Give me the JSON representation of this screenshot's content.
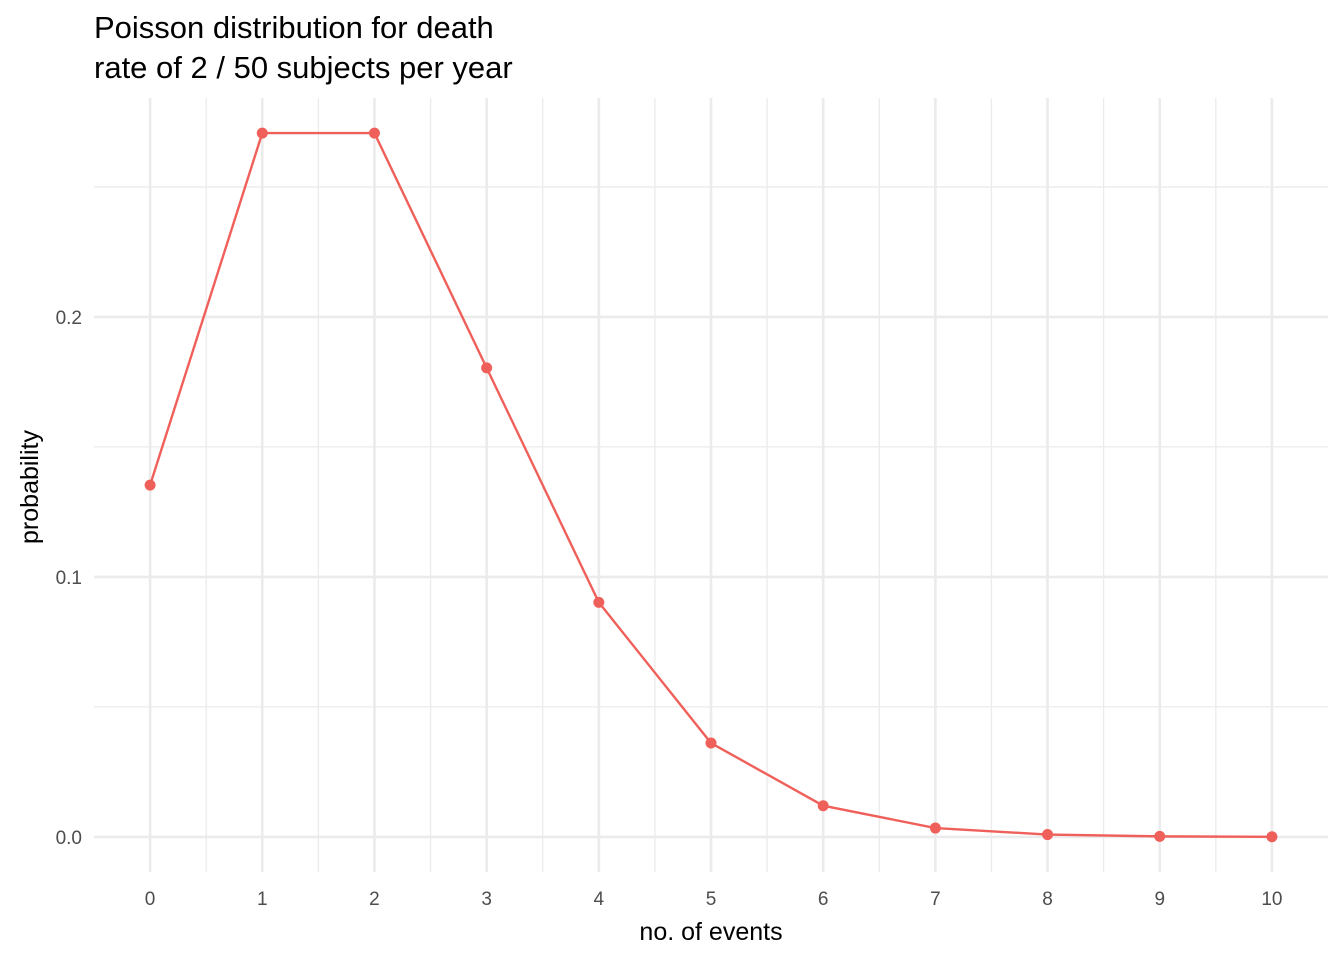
{
  "chart_data": {
    "type": "line",
    "title": [
      "Poisson distribution for death",
      "rate of 2 / 50 subjects per year"
    ],
    "xlabel": "no. of events",
    "ylabel": "probability",
    "x": [
      0,
      1,
      2,
      3,
      4,
      5,
      6,
      7,
      8,
      9,
      10
    ],
    "series": [
      {
        "values": [
          0.1353,
          0.2707,
          0.2707,
          0.1804,
          0.0902,
          0.0361,
          0.012,
          0.0034,
          0.0009,
          0.0002,
          4e-05
        ],
        "color": "#F0605A",
        "markers": true
      }
    ],
    "x_ticks": [
      "0",
      "1",
      "2",
      "3",
      "4",
      "5",
      "6",
      "7",
      "8",
      "9",
      "10"
    ],
    "y_ticks": [
      "0.0",
      "0.1",
      "0.2"
    ],
    "xlim": [
      -0.5,
      10.5
    ],
    "ylim": [
      -0.0135,
      0.2842
    ],
    "grid": true,
    "legend": "none"
  }
}
